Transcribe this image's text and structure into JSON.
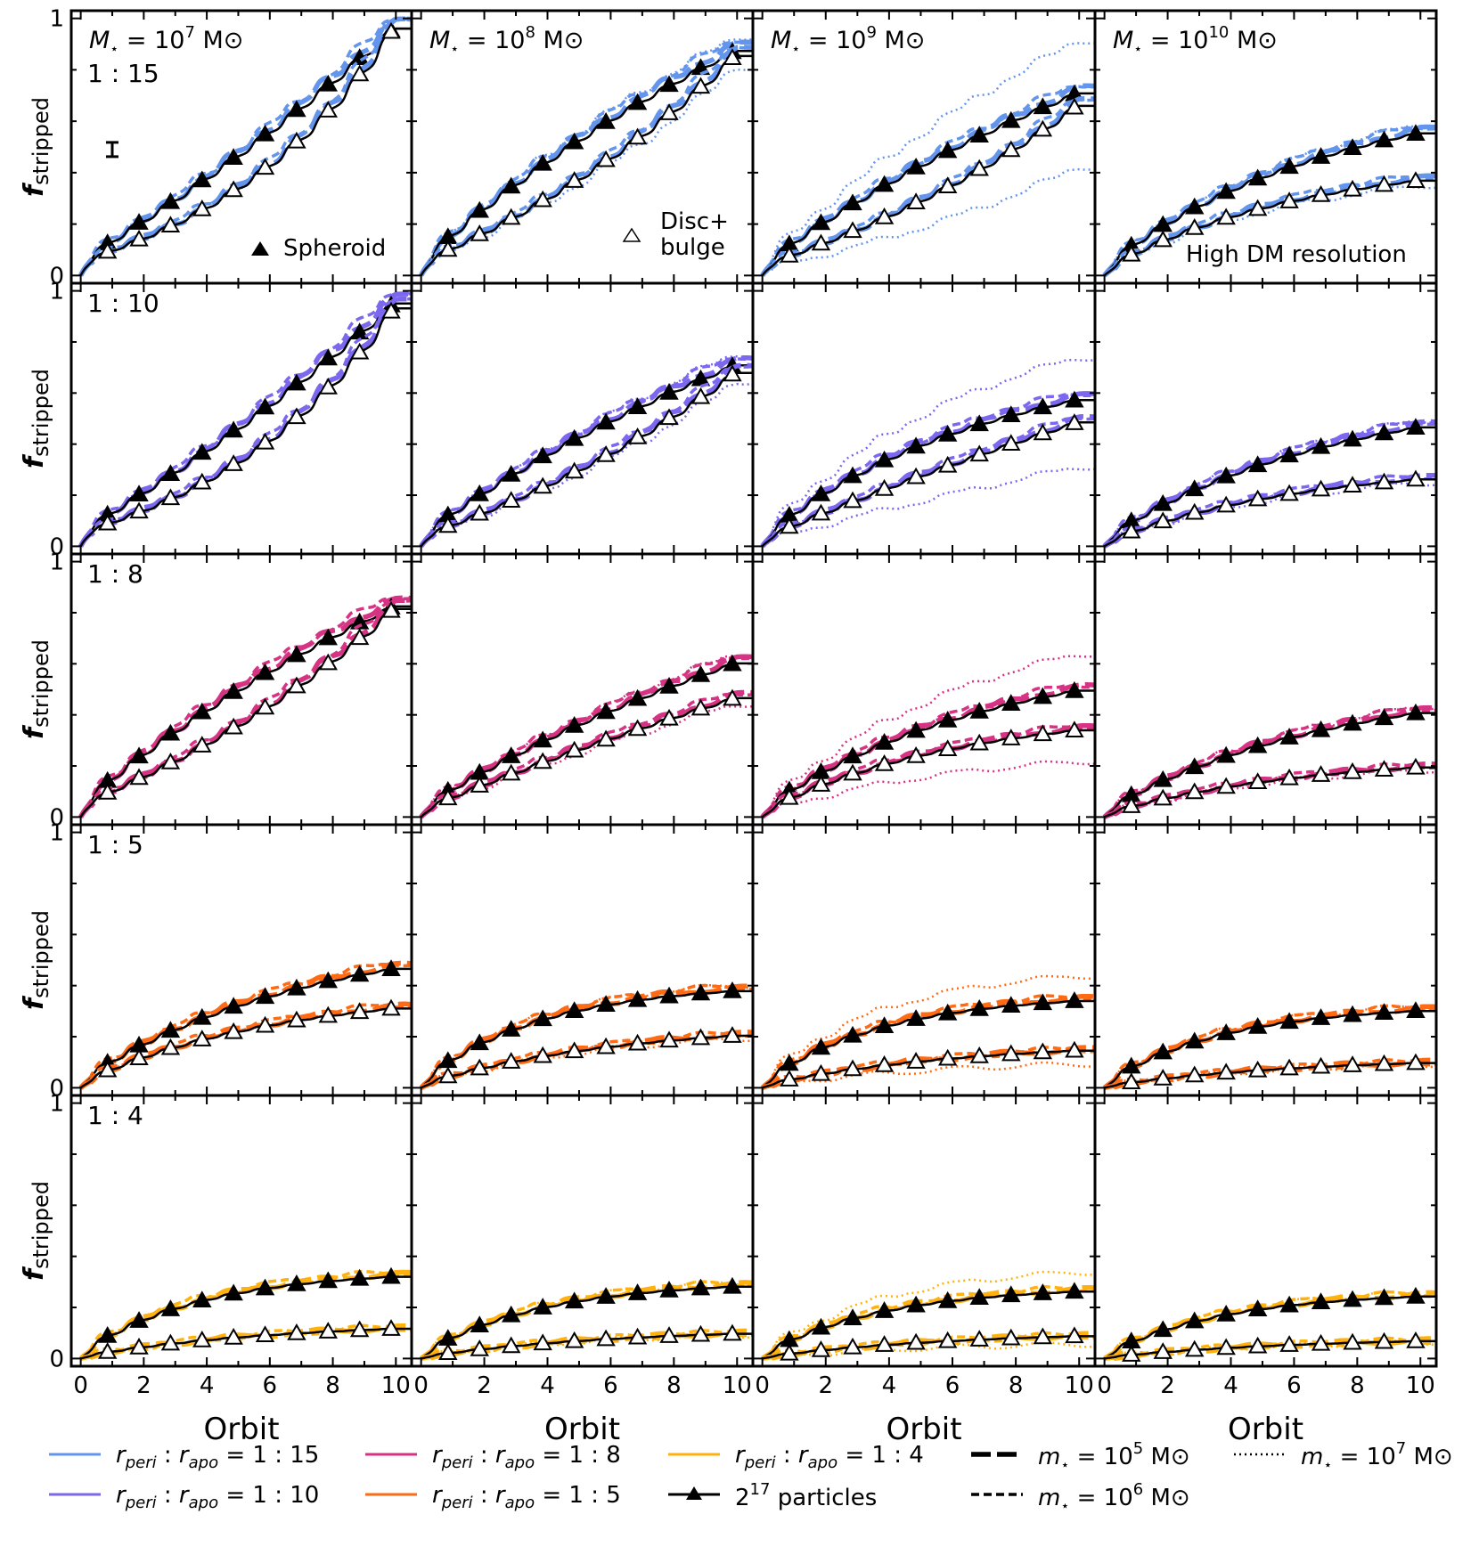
{
  "chart_data": {
    "type": "line",
    "title": "",
    "xlabel": "Orbit",
    "ylabel": "f_stripped",
    "xlim": [
      -0.3,
      10.5
    ],
    "ylim": [
      -0.03,
      1.03
    ],
    "x_ticks": [
      0,
      2,
      4,
      6,
      8,
      10
    ],
    "y_ticks": [
      0,
      1
    ],
    "columns": [
      {
        "mass_label": "M⋆ = 10^7 M⊙",
        "mass_exp": "7"
      },
      {
        "mass_label": "M⋆ = 10^8 M⊙",
        "mass_exp": "8"
      },
      {
        "mass_label": "M⋆ = 10^9 M⊙",
        "mass_exp": "9"
      },
      {
        "mass_label": "M⋆ = 10^10 M⊙",
        "mass_exp": "10"
      }
    ],
    "rows": [
      {
        "ratio": "1 : 15",
        "color": "#6495ED",
        "spheroid_final": [
          0.99,
          0.9,
          0.73,
          0.57
        ],
        "disc_final": [
          0.99,
          0.88,
          0.68,
          0.38
        ]
      },
      {
        "ratio": "1 : 10",
        "color": "#7B68EE",
        "spheroid_final": [
          0.98,
          0.73,
          0.59,
          0.48
        ],
        "disc_final": [
          0.96,
          0.7,
          0.5,
          0.27
        ]
      },
      {
        "ratio": "1 : 8",
        "color": "#D63384",
        "spheroid_final": [
          0.85,
          0.62,
          0.51,
          0.42
        ],
        "disc_final": [
          0.84,
          0.48,
          0.35,
          0.2
        ]
      },
      {
        "ratio": "1 : 5",
        "color": "#FF6A14",
        "spheroid_final": [
          0.48,
          0.39,
          0.35,
          0.31
        ],
        "disc_final": [
          0.32,
          0.21,
          0.15,
          0.1
        ]
      },
      {
        "ratio": "1 : 4",
        "color": "#FFB20F",
        "spheroid_final": [
          0.33,
          0.29,
          0.27,
          0.25
        ],
        "disc_final": [
          0.12,
          0.1,
          0.09,
          0.07
        ]
      }
    ],
    "series_styles": [
      {
        "name": "m⋆ = 10^5 M⊙",
        "dash": "long-dash",
        "exp": "5"
      },
      {
        "name": "m⋆ = 10^6 M⊙",
        "dash": "short-dash",
        "exp": "6"
      },
      {
        "name": "m⋆ = 10^7 M⊙",
        "dash": "dotted",
        "exp": "7"
      },
      {
        "name": "2^17 particles",
        "dash": "solid-black-triangles",
        "exp": "17"
      }
    ],
    "annotations": {
      "spheroid": "Spheroid",
      "disc_line1": "Disc+",
      "disc_line2": "bulge",
      "high_dm": "High DM resolution"
    },
    "legend": {
      "placement": "bottom",
      "rperi_sub": "peri",
      "rapo_sub": "apo",
      "ratio_15": "= 1 : 15",
      "ratio_10": "= 1 : 10",
      "ratio_8": "= 1 : 8",
      "ratio_5": "= 1 : 5",
      "ratio_4": "= 1 : 4",
      "particles_label": "particles",
      "msun_unit": "M⊙",
      "m_symbol": "m",
      "star": "⋆",
      "eq_ten": "= 10"
    }
  }
}
